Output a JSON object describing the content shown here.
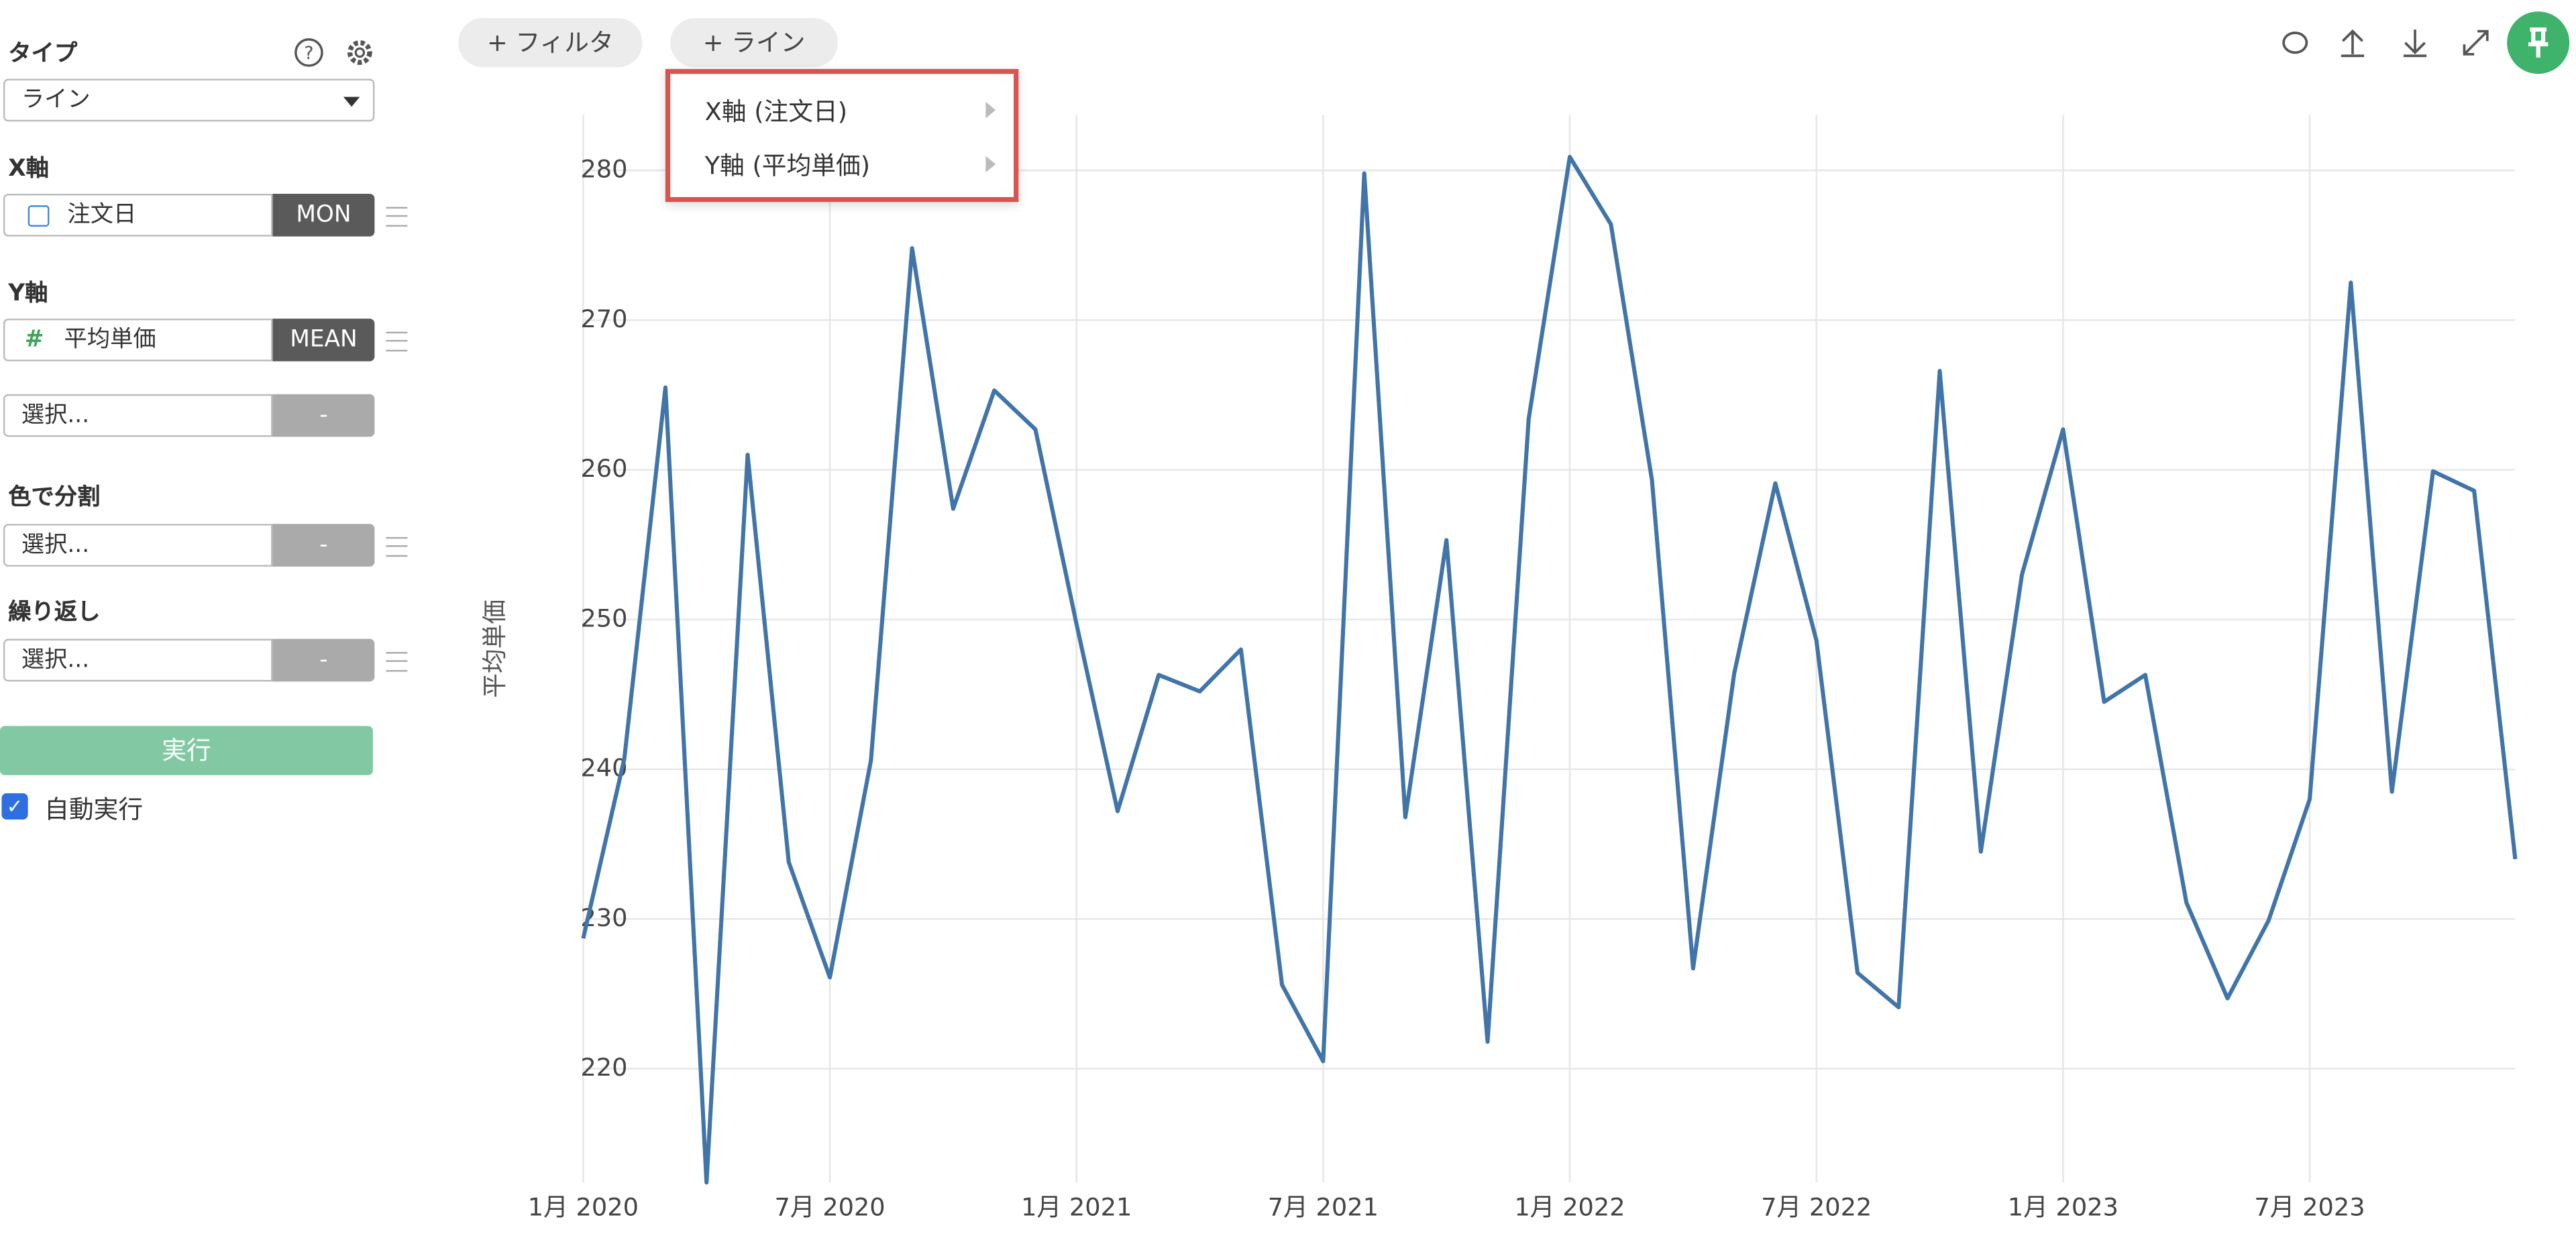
{
  "sidebar": {
    "type_label": "タイプ",
    "type_value": "ライン",
    "x_label": "X軸",
    "x_field": "注文日",
    "x_agg": "MON",
    "y_label": "Y軸",
    "y_field": "平均単価",
    "y_agg": "MEAN",
    "y2_field": "選択...",
    "y2_agg": "-",
    "color_label": "色で分割",
    "color_field": "選択...",
    "color_agg": "-",
    "repeat_label": "繰り返し",
    "repeat_field": "選択...",
    "repeat_agg": "-",
    "run_button": "実行",
    "auto_run": "自動実行"
  },
  "toolbar": {
    "filter_button": "+ フィルタ",
    "line_button": "+ ライン"
  },
  "menu": {
    "items": [
      "X軸 (注文日)",
      "Y軸 (平均単価)"
    ]
  },
  "chart_data": {
    "type": "line",
    "y_label": "平均単価",
    "x": [
      "2020-01",
      "2020-02",
      "2020-03",
      "2020-04",
      "2020-05",
      "2020-06",
      "2020-07",
      "2020-08",
      "2020-09",
      "2020-10",
      "2020-11",
      "2020-12",
      "2021-01",
      "2021-02",
      "2021-03",
      "2021-04",
      "2021-05",
      "2021-06",
      "2021-07",
      "2021-08",
      "2021-09",
      "2021-10",
      "2021-11",
      "2021-12",
      "2022-01",
      "2022-02",
      "2022-03",
      "2022-04",
      "2022-05",
      "2022-06",
      "2022-07",
      "2022-08",
      "2022-09",
      "2022-10",
      "2022-11",
      "2022-12",
      "2023-01",
      "2023-02",
      "2023-03",
      "2023-04",
      "2023-05",
      "2023-06",
      "2023-07",
      "2023-08",
      "2023-09",
      "2023-10",
      "2023-11",
      "2023-12"
    ],
    "series": [
      {
        "name": "平均単価",
        "color": "#4174a8",
        "values": [
          228.7,
          240.7,
          265.5,
          212.4,
          261.0,
          233.8,
          226.1,
          240.6,
          274.8,
          257.4,
          265.3,
          262.7,
          249.7,
          237.2,
          246.3,
          245.2,
          248.0,
          225.6,
          220.5,
          279.8,
          236.8,
          255.3,
          221.8,
          263.4,
          280.9,
          276.4,
          259.3,
          226.7,
          246.4,
          259.1,
          248.6,
          226.4,
          224.1,
          266.6,
          234.5,
          253.0,
          262.7,
          244.5,
          246.3,
          231.1,
          224.7,
          229.9,
          238.0,
          272.5,
          238.5,
          259.9,
          258.6,
          234.0
        ]
      }
    ],
    "xlim": [
      "2020-01",
      "2023-12"
    ],
    "xticks": [
      {
        "value": "2020-01",
        "label": "1月 2020"
      },
      {
        "value": "2020-07",
        "label": "7月 2020"
      },
      {
        "value": "2021-01",
        "label": "1月 2021"
      },
      {
        "value": "2021-07",
        "label": "7月 2021"
      },
      {
        "value": "2022-01",
        "label": "1月 2022"
      },
      {
        "value": "2022-07",
        "label": "7月 2022"
      },
      {
        "value": "2023-01",
        "label": "1月 2023"
      },
      {
        "value": "2023-07",
        "label": "7月 2023"
      }
    ],
    "ylim": [
      212.4,
      283.7
    ],
    "yticks": [
      220,
      230,
      240,
      250,
      260,
      270,
      280
    ],
    "grid": true
  }
}
